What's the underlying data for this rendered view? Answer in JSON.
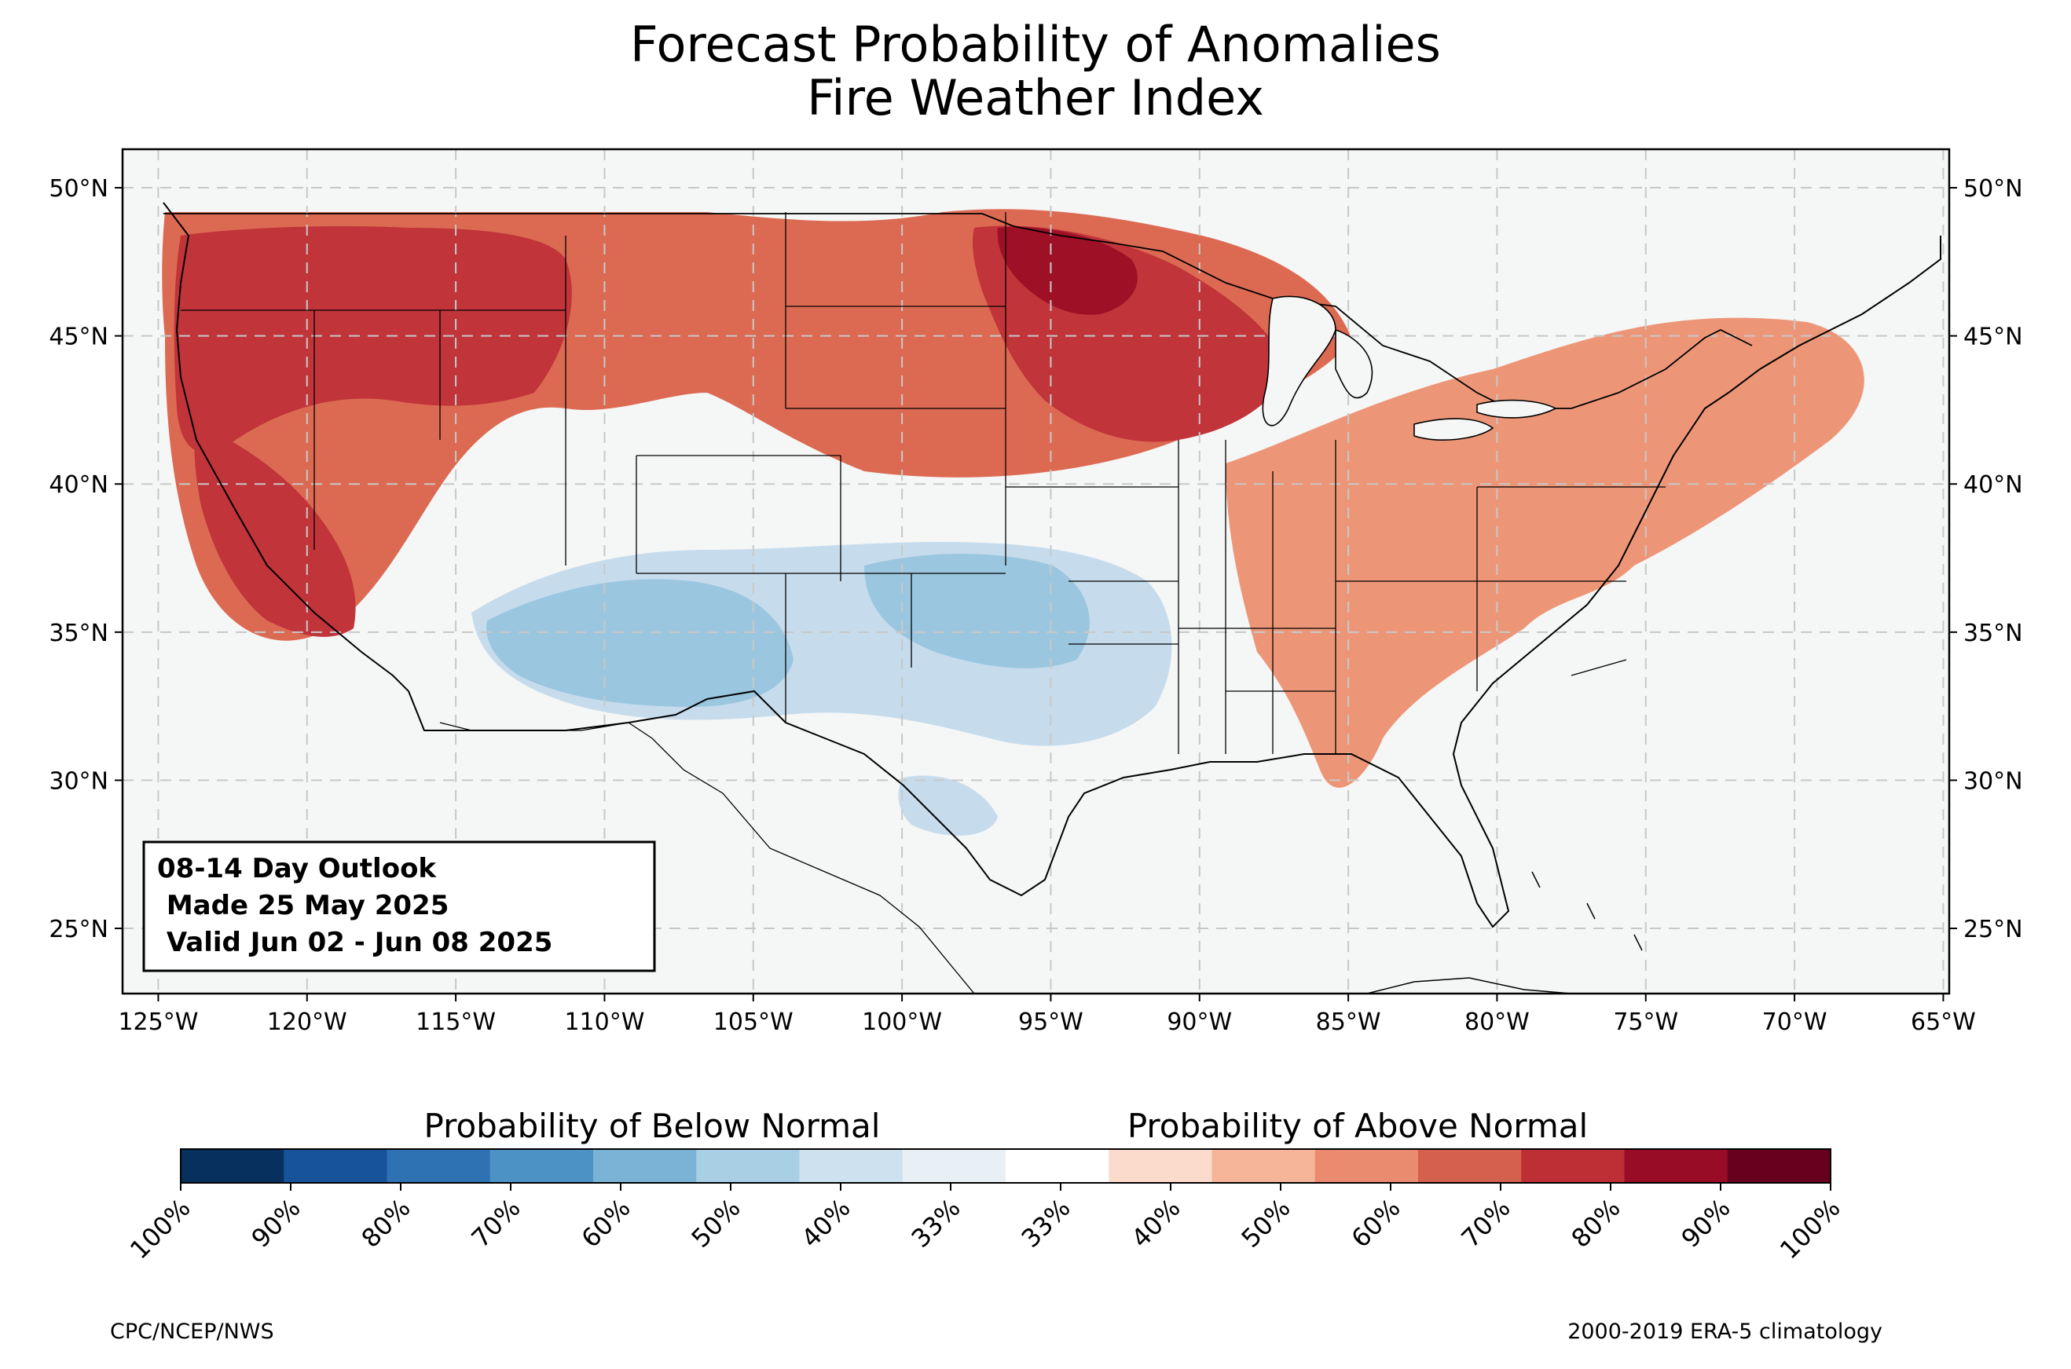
{
  "title": {
    "line1": "Forecast Probability of Anomalies",
    "line2": "Fire Weather Index"
  },
  "map": {
    "lon_range": [
      -126.2,
      -64.8
    ],
    "lat_range": [
      22.8,
      51.3
    ],
    "lon_ticks": [
      "125°W",
      "120°W",
      "115°W",
      "110°W",
      "105°W",
      "100°W",
      "95°W",
      "90°W",
      "85°W",
      "80°W",
      "75°W",
      "70°W",
      "65°W"
    ],
    "lat_ticks": [
      "50°N",
      "45°N",
      "40°N",
      "35°N",
      "30°N",
      "25°N"
    ],
    "grid": "dashed",
    "background": "#f5f6f6",
    "info_box": {
      "line1": "08-14 Day Outlook",
      "line2": " Made 25 May 2025",
      "line3": " Valid Jun 02 - Jun 08 2025"
    },
    "regions": [
      {
        "name": "pacific-northwest",
        "category": "above-70",
        "color": "#c0343a"
      },
      {
        "name": "northern-plains-great-lakes",
        "category": "above-70",
        "color": "#c0343a"
      },
      {
        "name": "minnesota-core",
        "category": "above-80",
        "color": "#9d1026"
      },
      {
        "name": "northern-tier",
        "category": "above-60",
        "color": "#dc6a52"
      },
      {
        "name": "california-nevada",
        "category": "above-60",
        "color": "#dc6a52"
      },
      {
        "name": "eastern-us",
        "category": "above-50",
        "color": "#ed9677"
      },
      {
        "name": "southwest",
        "category": "below-50",
        "color": "#9bc6e0"
      },
      {
        "name": "southern-plains",
        "category": "below-40",
        "color": "#c6dcec"
      }
    ]
  },
  "colorbar": {
    "label_below": "Probability of Below Normal",
    "label_above": "Probability of Above Normal",
    "colors": [
      "#08305e",
      "#17539a",
      "#2f72b4",
      "#4d92c4",
      "#7bb3d6",
      "#a9cfe5",
      "#cde1ee",
      "#e9f0f5",
      "#ffffff",
      "#fbdccc",
      "#f6b498",
      "#ea8a6e",
      "#d4604d",
      "#bd2e35",
      "#990c25",
      "#67001f"
    ],
    "tick_labels": [
      "100%",
      "90%",
      "80%",
      "70%",
      "60%",
      "50%",
      "40%",
      "33%",
      "33%",
      "40%",
      "50%",
      "60%",
      "70%",
      "80%",
      "90%",
      "100%"
    ]
  },
  "credits": {
    "left": "CPC/NCEP/NWS",
    "right": "2000-2019 ERA-5 climatology"
  }
}
